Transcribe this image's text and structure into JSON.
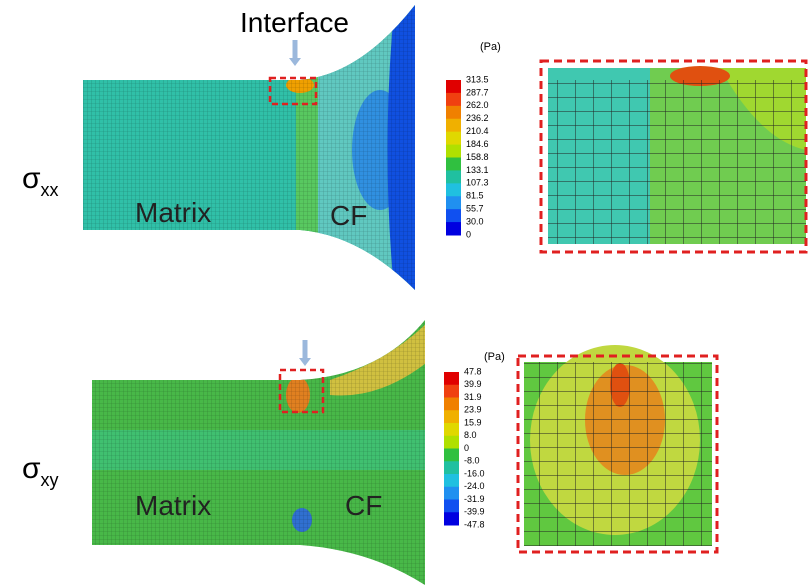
{
  "annotation": "Interface",
  "panels": [
    {
      "symbol": "σ",
      "subscript": "xx",
      "unit": "(Pa)",
      "colorbar": [
        "313.5",
        "287.7",
        "262.0",
        "236.2",
        "210.4",
        "184.6",
        "158.8",
        "133.1",
        "107.3",
        "81.5",
        "55.7",
        "30.0",
        "0"
      ],
      "regions": [
        "Matrix",
        "CF"
      ]
    },
    {
      "symbol": "σ",
      "subscript": "xy",
      "unit": "(Pa)",
      "colorbar": [
        "47.8",
        "39.9",
        "31.9",
        "23.9",
        "15.9",
        "8.0",
        "0",
        "-8.0",
        "-16.0",
        "-24.0",
        "-31.9",
        "-39.9",
        "-47.8"
      ],
      "regions": [
        "Matrix",
        "CF"
      ]
    }
  ]
}
